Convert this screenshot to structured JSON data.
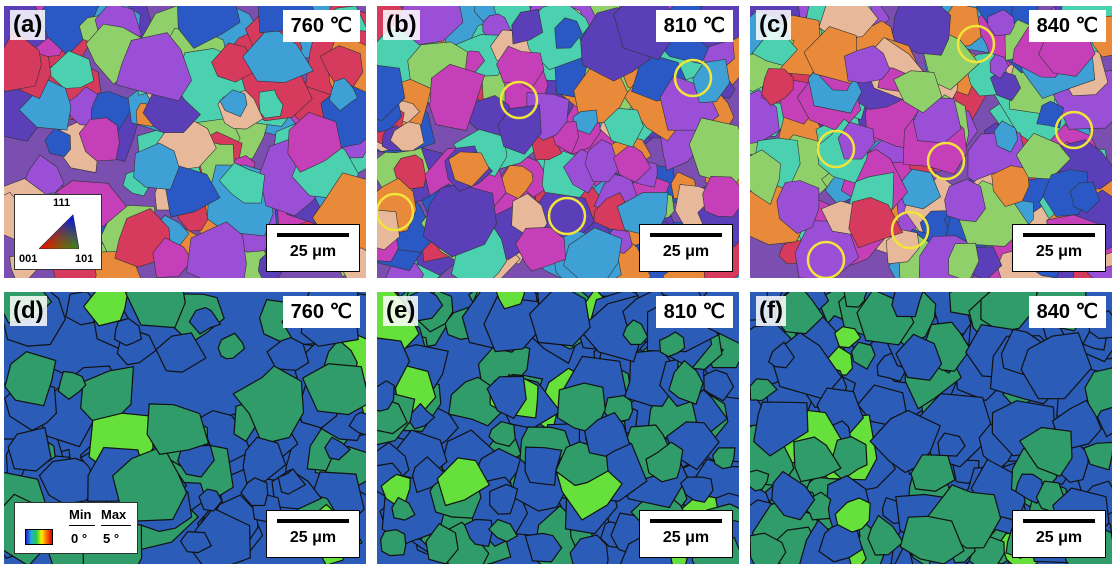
{
  "panels": [
    {
      "id": "a",
      "label": "(a)",
      "temp": "760 ℃",
      "scale": "25 μm",
      "type": "ipf"
    },
    {
      "id": "b",
      "label": "(b)",
      "temp": "810 ℃",
      "scale": "25 μm",
      "type": "ipf"
    },
    {
      "id": "c",
      "label": "(c)",
      "temp": "840 ℃",
      "scale": "25 μm",
      "type": "ipf"
    },
    {
      "id": "d",
      "label": "(d)",
      "temp": "760 ℃",
      "scale": "25 μm",
      "type": "ksm"
    },
    {
      "id": "e",
      "label": "(e)",
      "temp": "810 ℃",
      "scale": "25 μm",
      "type": "ksm"
    },
    {
      "id": "f",
      "label": "(f)",
      "temp": "840 ℃",
      "scale": "25 μm",
      "type": "ksm"
    }
  ],
  "ipf_key": {
    "top": "111",
    "left": "001",
    "right": "101"
  },
  "ksm_key": {
    "min_label": "Min",
    "max_label": "Max",
    "min_value": "0 °",
    "max_value": "5 °"
  },
  "colors": {
    "ipf_palette": [
      "#d63a5c",
      "#5a3fb8",
      "#3fa0d6",
      "#8fd06b",
      "#e8b89a",
      "#2a58c4",
      "#c43fb8",
      "#e88a3a",
      "#4bd1b0",
      "#9a4fd6"
    ],
    "ksm_base": "#2b5db8",
    "ksm_mid": "#2f9c6a",
    "ksm_hot": "#66e03a",
    "highlight_circle": "#f2e53a"
  }
}
